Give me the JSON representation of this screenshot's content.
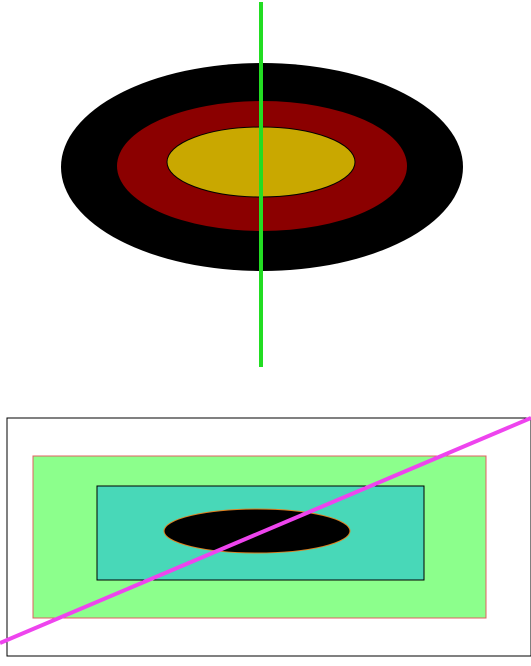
{
  "diagram": {
    "top_figure": {
      "outer_ellipse": {
        "fill": "#000000"
      },
      "middle_ellipse": {
        "fill": "#8b0000"
      },
      "inner_ellipse": {
        "fill": "#c9a800",
        "stroke": "#000000"
      },
      "vertical_line": {
        "stroke": "#22dd22"
      }
    },
    "bottom_figure": {
      "frame": {
        "fill": "#ffffff",
        "stroke": "#000000"
      },
      "green_rect": {
        "fill": "#8cff8c",
        "stroke": "#e06060"
      },
      "teal_rect": {
        "fill": "#48d8b8",
        "stroke": "#000000"
      },
      "black_ellipse": {
        "fill": "#000000",
        "stroke": "#e08020"
      },
      "diagonal_line": {
        "stroke": "#ee44ee"
      }
    }
  }
}
